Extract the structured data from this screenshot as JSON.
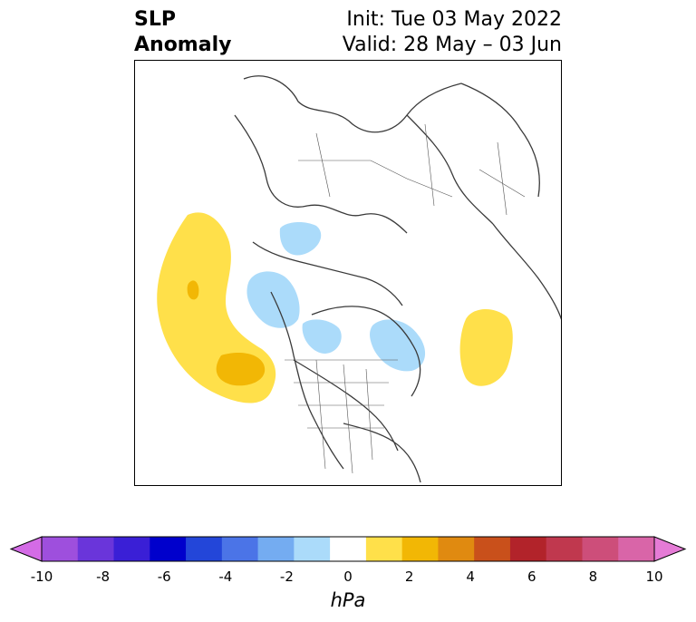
{
  "title": {
    "left_line1": "SLP",
    "left_line2": "Anomaly",
    "right_line1": "Init: Tue 03 May 2022",
    "right_line2": "Valid: 28 May – 03 Jun"
  },
  "colorbar": {
    "unit": "hPa",
    "tick_labels": [
      "-10",
      "-8",
      "-6",
      "-4",
      "-2",
      "0",
      "2",
      "4",
      "6",
      "8",
      "10"
    ],
    "colors": [
      "#d46be6",
      "#9e4fdd",
      "#6a35da",
      "#3a1fd6",
      "#0000cc",
      "#2346d9",
      "#4b74e7",
      "#74acf1",
      "#abdbfa",
      "#ffffff",
      "#ffe04a",
      "#f2b705",
      "#e08a10",
      "#c9501b",
      "#b2232a",
      "#c0384e",
      "#cd4e7a",
      "#d965a8",
      "#e57bd6"
    ],
    "extend": "both"
  },
  "map": {
    "projection": "north polar stereographic",
    "variable": "sea level pressure anomaly",
    "features": [
      {
        "name": "north-pacific-positive-anomaly",
        "level": "2-4 hPa"
      },
      {
        "name": "northeast-pacific-positive-core",
        "level": "3-4 hPa"
      },
      {
        "name": "north-atlantic-positive-anomaly",
        "level": "2 hPa"
      },
      {
        "name": "hudson-bay-negative-anomaly",
        "level": "-1 to -2 hPa"
      },
      {
        "name": "alaska-negative-anomaly",
        "level": "-1 to -2 hPa"
      },
      {
        "name": "east-siberia-negative-anomaly",
        "level": "-1 to -2 hPa"
      }
    ]
  }
}
